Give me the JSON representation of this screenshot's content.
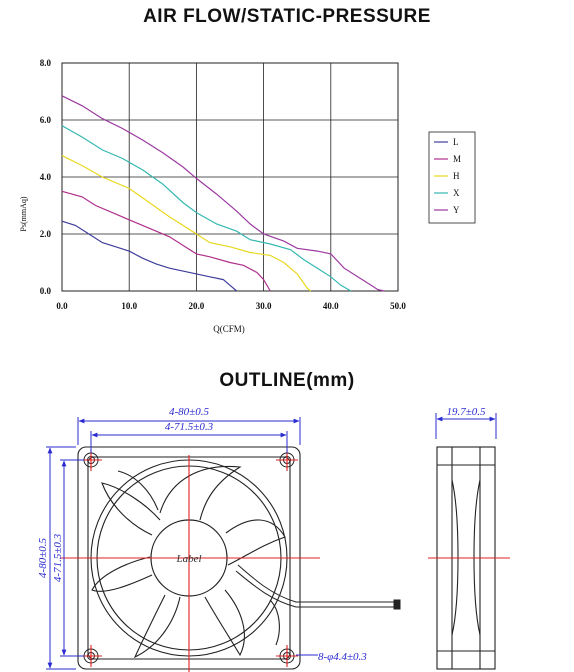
{
  "titles": {
    "airflow": "AIR FLOW/STATIC-PRESSURE",
    "outline": "OUTLINE(mm)"
  },
  "chart_data": {
    "type": "line",
    "xlabel": "Q(CFM)",
    "ylabel": "Ps(mmAq)",
    "xlim": [
      0,
      50
    ],
    "ylim": [
      0,
      8
    ],
    "x_ticks": [
      0,
      10,
      20,
      30,
      40,
      50
    ],
    "x_tick_labels": [
      "0.0",
      "10.0",
      "20.0",
      "30.0",
      "40.0",
      "50.0"
    ],
    "y_ticks": [
      0,
      2,
      4,
      6,
      8
    ],
    "y_tick_labels": [
      "0.0",
      "2.0",
      "4.0",
      "6.0",
      "8.0"
    ],
    "grid": true,
    "legend_position": "right",
    "series": [
      {
        "name": "L",
        "color": "#3f3f9c",
        "points": [
          [
            0,
            2.45
          ],
          [
            2,
            2.3
          ],
          [
            4,
            2.0
          ],
          [
            6,
            1.7
          ],
          [
            8,
            1.55
          ],
          [
            10,
            1.4
          ],
          [
            12,
            1.15
          ],
          [
            14,
            0.95
          ],
          [
            16,
            0.8
          ],
          [
            18,
            0.7
          ],
          [
            20,
            0.6
          ],
          [
            22,
            0.5
          ],
          [
            24,
            0.4
          ],
          [
            25,
            0.2
          ],
          [
            26,
            0
          ]
        ]
      },
      {
        "name": "M",
        "color": "#b0308c",
        "points": [
          [
            0,
            3.5
          ],
          [
            3,
            3.3
          ],
          [
            5,
            3.0
          ],
          [
            8,
            2.7
          ],
          [
            10,
            2.5
          ],
          [
            13,
            2.2
          ],
          [
            16,
            1.9
          ],
          [
            18,
            1.6
          ],
          [
            20,
            1.3
          ],
          [
            22,
            1.2
          ],
          [
            25,
            1.0
          ],
          [
            27,
            0.9
          ],
          [
            29,
            0.65
          ],
          [
            30,
            0.4
          ],
          [
            31,
            0
          ]
        ]
      },
      {
        "name": "H",
        "color": "#e8d81e",
        "points": [
          [
            0,
            4.75
          ],
          [
            3,
            4.4
          ],
          [
            6,
            4.0
          ],
          [
            10,
            3.6
          ],
          [
            13,
            3.1
          ],
          [
            16,
            2.6
          ],
          [
            18,
            2.3
          ],
          [
            20,
            2.0
          ],
          [
            22,
            1.7
          ],
          [
            25,
            1.55
          ],
          [
            28,
            1.35
          ],
          [
            31,
            1.25
          ],
          [
            33,
            1.0
          ],
          [
            35,
            0.6
          ],
          [
            36.5,
            0.1
          ],
          [
            37,
            0
          ]
        ]
      },
      {
        "name": "X",
        "color": "#35b8b0",
        "points": [
          [
            0,
            5.8
          ],
          [
            3,
            5.4
          ],
          [
            6,
            4.95
          ],
          [
            9,
            4.65
          ],
          [
            12,
            4.25
          ],
          [
            15,
            3.75
          ],
          [
            18,
            3.1
          ],
          [
            20,
            2.75
          ],
          [
            23,
            2.35
          ],
          [
            26,
            2.1
          ],
          [
            28,
            1.8
          ],
          [
            31,
            1.65
          ],
          [
            34,
            1.45
          ],
          [
            36,
            1.1
          ],
          [
            38,
            0.8
          ],
          [
            40,
            0.5
          ],
          [
            41.5,
            0.2
          ],
          [
            43,
            0
          ]
        ]
      },
      {
        "name": "Y",
        "color": "#9c3aa0",
        "points": [
          [
            0,
            6.85
          ],
          [
            3,
            6.5
          ],
          [
            6,
            6.05
          ],
          [
            9,
            5.7
          ],
          [
            12,
            5.3
          ],
          [
            15,
            4.85
          ],
          [
            18,
            4.35
          ],
          [
            20,
            3.95
          ],
          [
            23,
            3.4
          ],
          [
            26,
            2.8
          ],
          [
            28,
            2.35
          ],
          [
            30,
            2.0
          ],
          [
            33,
            1.75
          ],
          [
            35,
            1.5
          ],
          [
            38,
            1.4
          ],
          [
            40,
            1.3
          ],
          [
            42,
            0.8
          ],
          [
            44,
            0.5
          ],
          [
            46,
            0.2
          ],
          [
            47,
            0.05
          ],
          [
            48,
            0
          ]
        ]
      }
    ]
  },
  "outline": {
    "dim_width_outer": "4-80±0.5",
    "dim_width_inner": "4-71.5±0.3",
    "dim_height_outer": "4-80±0.5",
    "dim_height_inner": "4-71.5±0.3",
    "dim_depth": "19.7±0.5",
    "dim_holes": "8-φ4.4±0.3",
    "hub_label": "Label"
  }
}
